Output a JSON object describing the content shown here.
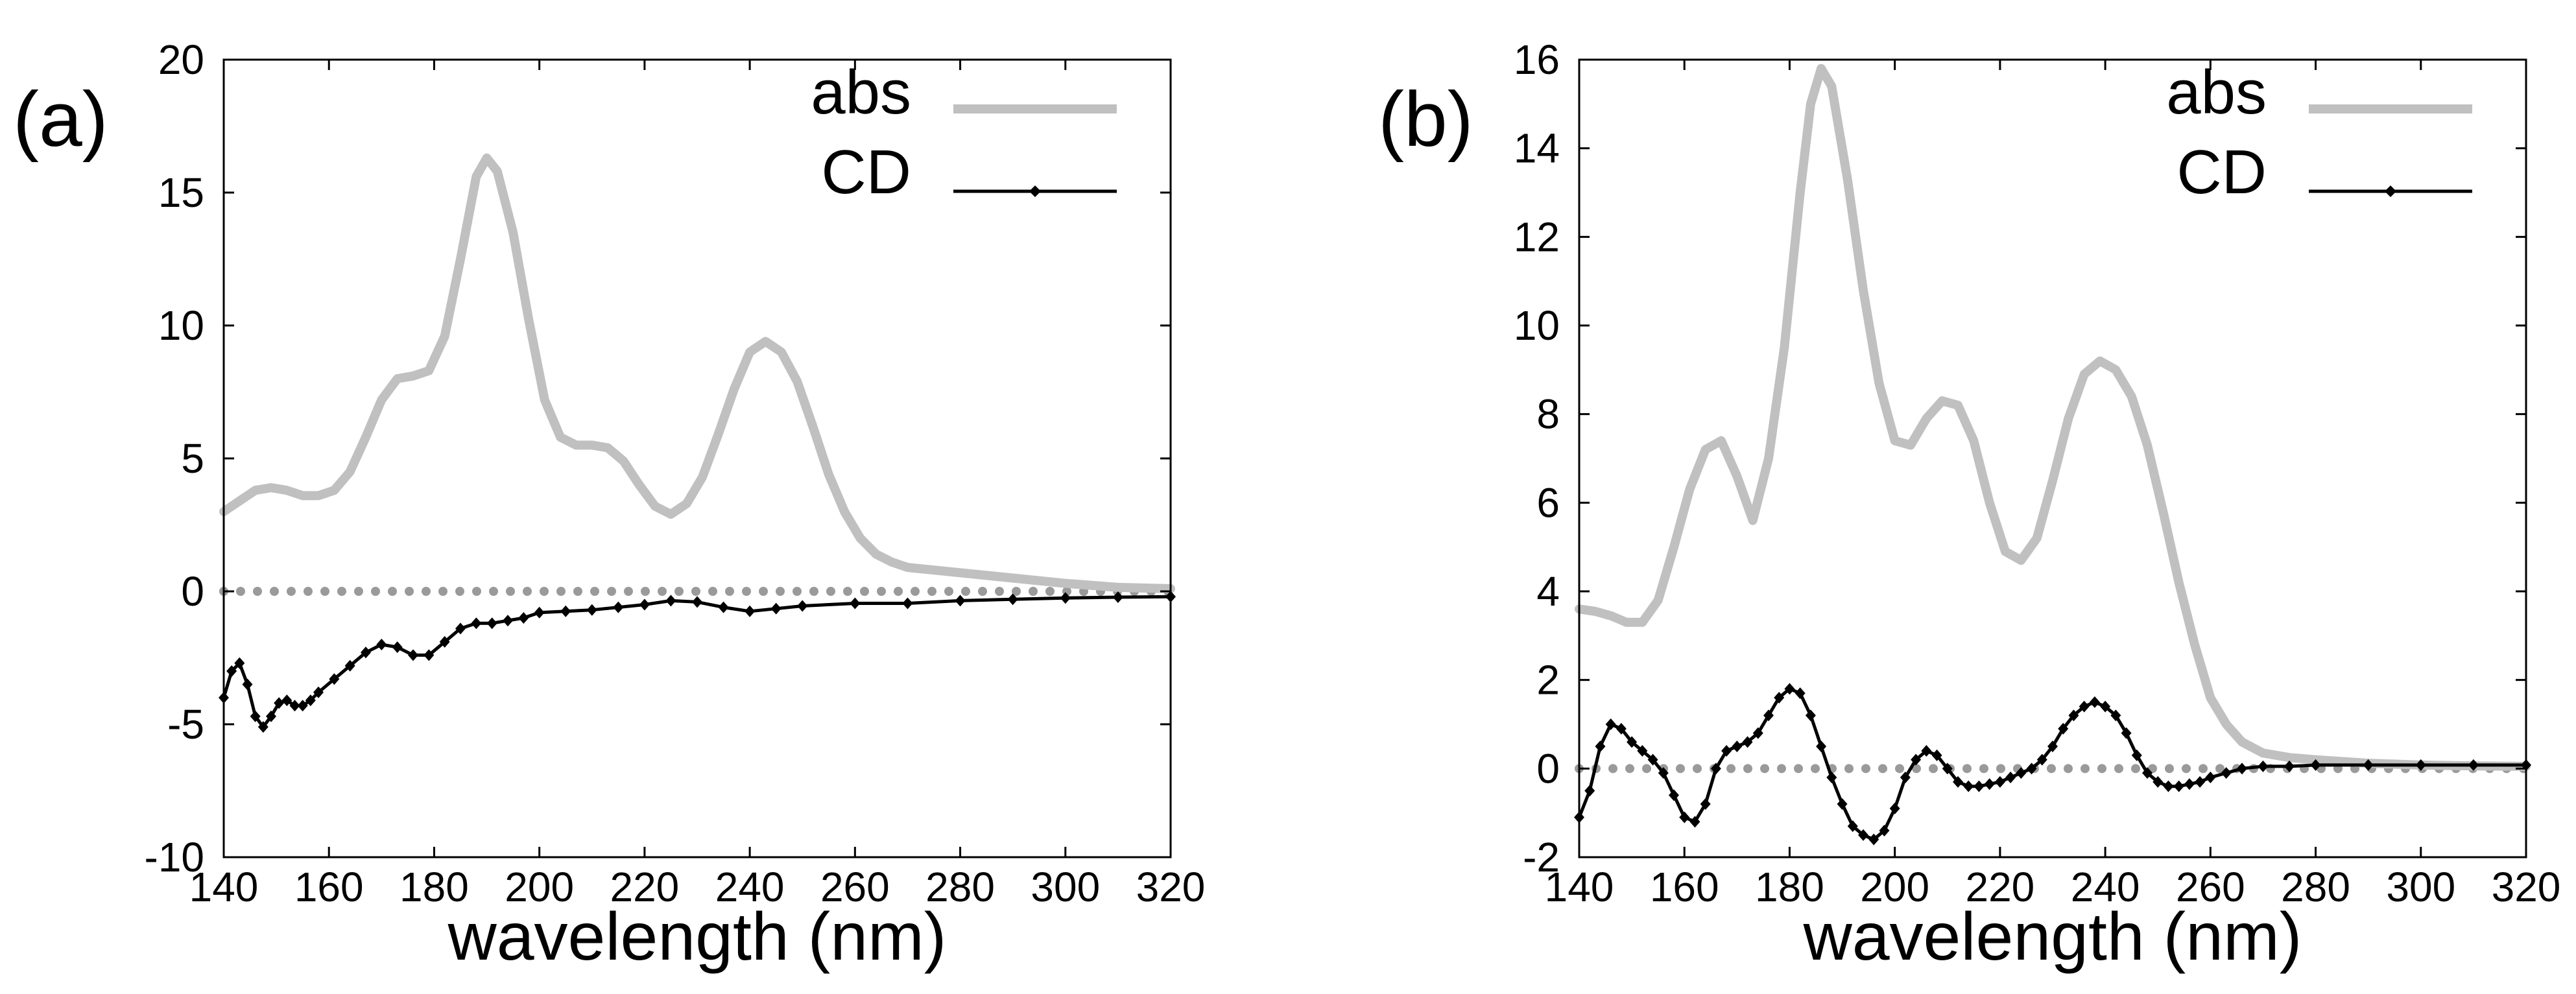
{
  "chart_data": [
    {
      "type": "line",
      "panel_label": "(a)",
      "xlabel": "wavelength (nm)",
      "ylabel": "",
      "xlim": [
        140,
        320
      ],
      "ylim": [
        -10,
        20
      ],
      "xticks": [
        "140",
        "160",
        "180",
        "200",
        "220",
        "240",
        "260",
        "280",
        "300",
        "320"
      ],
      "yticks": [
        "20",
        "15",
        "10",
        "5",
        "0",
        "-5",
        "-10"
      ],
      "legend": {
        "position": "top-right",
        "entries": [
          "abs",
          "CD"
        ]
      },
      "series": [
        {
          "name": "abs",
          "color": "#c0c0c0",
          "x": [
            140,
            143,
            146,
            149,
            152,
            155,
            158,
            161,
            164,
            167,
            170,
            173,
            176,
            179,
            182,
            185,
            188,
            190,
            192,
            195,
            198,
            201,
            204,
            207,
            210,
            213,
            216,
            219,
            222,
            225,
            228,
            231,
            234,
            237,
            240,
            243,
            246,
            249,
            252,
            255,
            258,
            261,
            264,
            267,
            270,
            275,
            280,
            290,
            300,
            310,
            320
          ],
          "y": [
            3.0,
            3.4,
            3.8,
            3.9,
            3.8,
            3.6,
            3.6,
            3.8,
            4.5,
            5.8,
            7.2,
            8.0,
            8.1,
            8.3,
            9.6,
            12.5,
            15.6,
            16.3,
            15.8,
            13.5,
            10.2,
            7.2,
            5.8,
            5.5,
            5.5,
            5.4,
            4.9,
            4.0,
            3.2,
            2.9,
            3.3,
            4.3,
            5.9,
            7.6,
            9.0,
            9.4,
            9.0,
            7.9,
            6.2,
            4.4,
            3.0,
            2.0,
            1.4,
            1.1,
            0.9,
            0.8,
            0.7,
            0.5,
            0.3,
            0.15,
            0.1
          ]
        },
        {
          "name": "CD",
          "color": "#000000",
          "marker": "diamond",
          "x": [
            140,
            141.5,
            143,
            144.5,
            146,
            147.5,
            149,
            150.5,
            152,
            153.5,
            155,
            156.5,
            158,
            161,
            164,
            167,
            170,
            173,
            176,
            179,
            182,
            185,
            188,
            191,
            194,
            197,
            200,
            205,
            210,
            215,
            220,
            225,
            230,
            235,
            240,
            245,
            250,
            260,
            270,
            280,
            290,
            300,
            310,
            320
          ],
          "y": [
            -4.0,
            -3.0,
            -2.7,
            -3.5,
            -4.7,
            -5.1,
            -4.7,
            -4.2,
            -4.1,
            -4.3,
            -4.3,
            -4.1,
            -3.8,
            -3.3,
            -2.8,
            -2.3,
            -2.0,
            -2.1,
            -2.4,
            -2.4,
            -1.9,
            -1.4,
            -1.2,
            -1.2,
            -1.1,
            -1.0,
            -0.8,
            -0.75,
            -0.7,
            -0.6,
            -0.5,
            -0.35,
            -0.4,
            -0.6,
            -0.75,
            -0.65,
            -0.55,
            -0.45,
            -0.45,
            -0.35,
            -0.3,
            -0.25,
            -0.22,
            -0.2
          ]
        },
        {
          "name": "zero",
          "color": "#9a9a9a",
          "style": "dotted",
          "x": [
            140,
            320
          ],
          "y": [
            0,
            0
          ]
        }
      ]
    },
    {
      "type": "line",
      "panel_label": "(b)",
      "xlabel": "wavelength (nm)",
      "ylabel": "",
      "xlim": [
        140,
        320
      ],
      "ylim": [
        -2,
        16
      ],
      "xticks": [
        "140",
        "160",
        "180",
        "200",
        "220",
        "240",
        "260",
        "280",
        "300",
        "320"
      ],
      "yticks": [
        "16",
        "14",
        "12",
        "10",
        "8",
        "6",
        "4",
        "2",
        "0",
        "-2"
      ],
      "legend": {
        "position": "top-right",
        "entries": [
          "abs",
          "CD"
        ]
      },
      "series": [
        {
          "name": "abs",
          "color": "#c0c0c0",
          "x": [
            140,
            143,
            146,
            149,
            152,
            155,
            158,
            161,
            164,
            167,
            170,
            173,
            176,
            179,
            182,
            184,
            186,
            188,
            191,
            194,
            197,
            200,
            203,
            206,
            209,
            212,
            215,
            218,
            221,
            224,
            227,
            230,
            233,
            236,
            239,
            242,
            245,
            248,
            251,
            254,
            257,
            260,
            263,
            266,
            270,
            275,
            280,
            290,
            300,
            310,
            320
          ],
          "y": [
            3.6,
            3.55,
            3.45,
            3.3,
            3.3,
            3.8,
            5.0,
            6.3,
            7.2,
            7.4,
            6.6,
            5.6,
            7.0,
            9.5,
            13.0,
            15.0,
            15.8,
            15.4,
            13.3,
            10.8,
            8.7,
            7.4,
            7.3,
            7.9,
            8.3,
            8.2,
            7.4,
            6.0,
            4.9,
            4.7,
            5.2,
            6.5,
            7.9,
            8.9,
            9.2,
            9.0,
            8.4,
            7.3,
            5.8,
            4.2,
            2.8,
            1.6,
            1.0,
            0.6,
            0.35,
            0.25,
            0.2,
            0.12,
            0.08,
            0.06,
            0.05
          ]
        },
        {
          "name": "CD",
          "color": "#000000",
          "marker": "diamond",
          "x": [
            140,
            142,
            144,
            146,
            148,
            150,
            152,
            154,
            156,
            158,
            160,
            162,
            164,
            166,
            168,
            170,
            172,
            174,
            176,
            178,
            180,
            182,
            184,
            186,
            188,
            190,
            192,
            194,
            196,
            198,
            200,
            202,
            204,
            206,
            208,
            210,
            212,
            214,
            216,
            218,
            220,
            222,
            224,
            226,
            228,
            230,
            232,
            234,
            236,
            238,
            240,
            242,
            244,
            246,
            248,
            250,
            252,
            254,
            256,
            258,
            260,
            263,
            266,
            270,
            275,
            280,
            290,
            300,
            310,
            320
          ],
          "y": [
            -1.1,
            -0.5,
            0.5,
            1.0,
            0.9,
            0.6,
            0.4,
            0.2,
            -0.1,
            -0.6,
            -1.1,
            -1.2,
            -0.8,
            0.0,
            0.4,
            0.5,
            0.6,
            0.8,
            1.2,
            1.6,
            1.8,
            1.7,
            1.2,
            0.5,
            -0.2,
            -0.8,
            -1.3,
            -1.5,
            -1.6,
            -1.4,
            -0.9,
            -0.2,
            0.2,
            0.4,
            0.3,
            0.0,
            -0.3,
            -0.4,
            -0.4,
            -0.35,
            -0.3,
            -0.2,
            -0.1,
            0.0,
            0.2,
            0.5,
            0.9,
            1.2,
            1.4,
            1.5,
            1.4,
            1.2,
            0.8,
            0.3,
            -0.1,
            -0.3,
            -0.4,
            -0.4,
            -0.35,
            -0.3,
            -0.2,
            -0.1,
            0.0,
            0.05,
            0.05,
            0.08,
            0.08,
            0.08,
            0.08,
            0.08
          ]
        },
        {
          "name": "zero",
          "color": "#9a9a9a",
          "style": "dotted",
          "x": [
            140,
            320
          ],
          "y": [
            0,
            0
          ]
        }
      ]
    }
  ]
}
